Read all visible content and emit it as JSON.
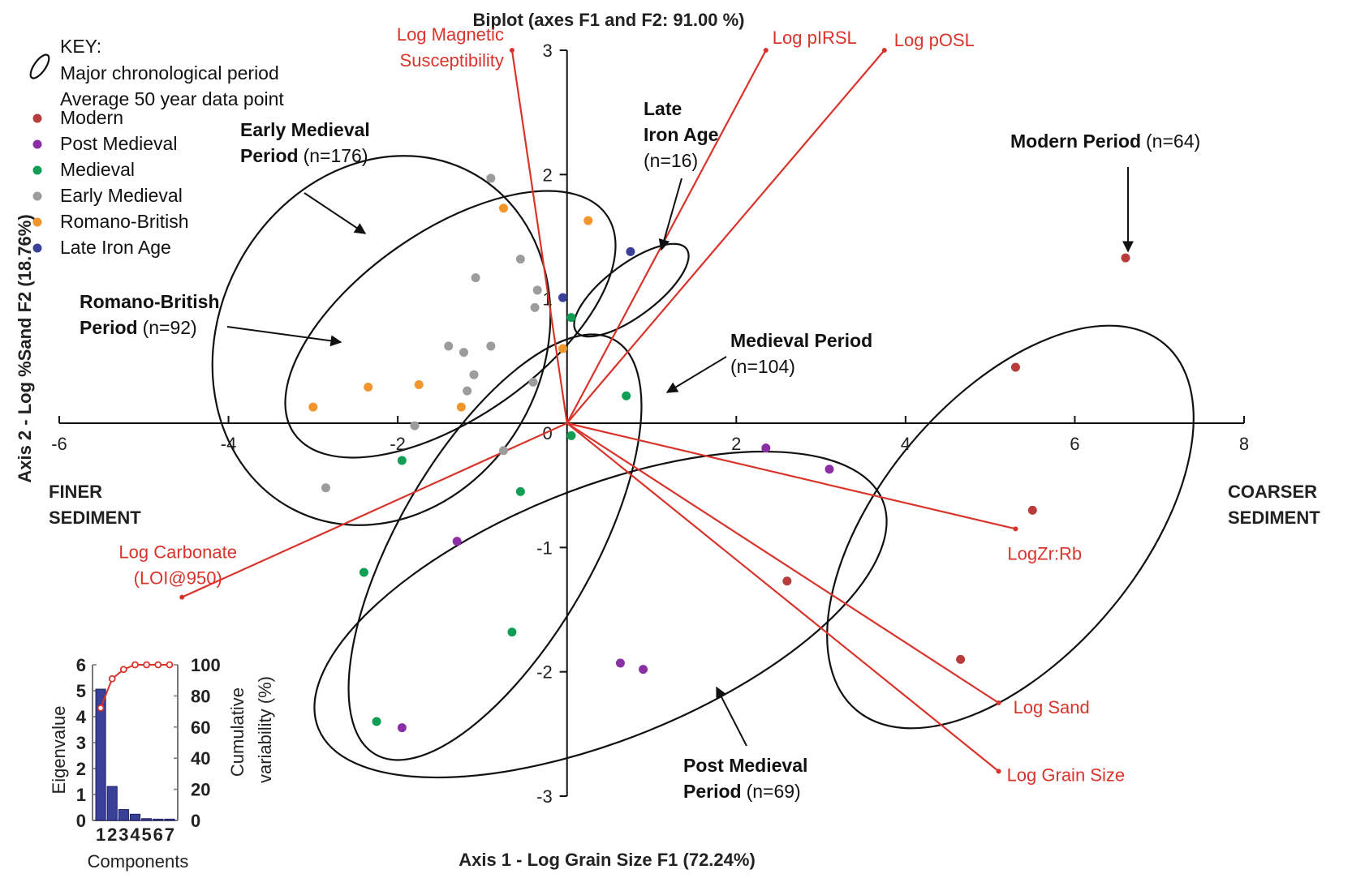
{
  "chart_data": {
    "type": "scatter",
    "title": "Biplot (axes F1 and F2: 91.00 %)",
    "xlabel": "Axis 1 - Log Grain Size F1 (72.24%)",
    "ylabel": "Axis 2 - Log %Sand F2 (18.76%)",
    "xlim": [
      -6,
      8
    ],
    "ylim": [
      -3,
      3
    ],
    "x_ticks": [
      "-6",
      "-4",
      "-2",
      "0",
      "2",
      "4",
      "6",
      "8"
    ],
    "y_ticks": [
      "-3",
      "-2",
      "-1",
      "1",
      "2",
      "3"
    ],
    "origin_label": "0",
    "x_left_label": [
      "FINER",
      "SEDIMENT"
    ],
    "x_right_label": [
      "COARSER",
      "SEDIMENT"
    ],
    "legend": {
      "position": "top-left",
      "heading": "KEY:",
      "ellipse_text": "Major chronological period",
      "point_text": "Average 50 year data point",
      "entries": [
        {
          "name": "Modern",
          "color": "#b83c3c"
        },
        {
          "name": "Post Medieval",
          "color": "#8b2fa6"
        },
        {
          "name": "Medieval",
          "color": "#0f9e54"
        },
        {
          "name": "Early Medieval",
          "color": "#9c9c9c"
        },
        {
          "name": "Romano-British",
          "color": "#f0962c"
        },
        {
          "name": "Late Iron Age",
          "color": "#3a3f97"
        }
      ]
    },
    "series": [
      {
        "name": "Modern",
        "color": "#b83c3c",
        "points": [
          [
            6.6,
            1.33
          ],
          [
            5.3,
            0.45
          ],
          [
            5.5,
            -0.7
          ],
          [
            2.6,
            -1.27
          ],
          [
            4.65,
            -1.9
          ]
        ]
      },
      {
        "name": "Post Medieval",
        "color": "#8b2fa6",
        "points": [
          [
            2.35,
            -0.2
          ],
          [
            3.1,
            -0.37
          ],
          [
            -1.3,
            -0.95
          ],
          [
            0.63,
            -1.93
          ],
          [
            0.9,
            -1.98
          ],
          [
            -1.95,
            -2.45
          ]
        ]
      },
      {
        "name": "Medieval",
        "color": "#0f9e54",
        "points": [
          [
            0.05,
            0.85
          ],
          [
            0.7,
            0.22
          ],
          [
            0.05,
            -0.1
          ],
          [
            -1.95,
            -0.3
          ],
          [
            -0.55,
            -0.55
          ],
          [
            -2.4,
            -1.2
          ],
          [
            -0.65,
            -1.68
          ],
          [
            -2.25,
            -2.4
          ]
        ]
      },
      {
        "name": "Early Medieval",
        "color": "#9c9c9c",
        "points": [
          [
            -0.9,
            1.97
          ],
          [
            -1.08,
            1.17
          ],
          [
            -0.55,
            1.32
          ],
          [
            -0.35,
            1.07
          ],
          [
            -0.38,
            0.93
          ],
          [
            -1.4,
            0.62
          ],
          [
            -1.22,
            0.57
          ],
          [
            -0.9,
            0.62
          ],
          [
            -1.1,
            0.39
          ],
          [
            -1.18,
            0.26
          ],
          [
            -0.4,
            0.33
          ],
          [
            -1.8,
            -0.02
          ],
          [
            -0.75,
            -0.22
          ],
          [
            -2.85,
            -0.52
          ]
        ]
      },
      {
        "name": "Romano-British",
        "color": "#f0962c",
        "points": [
          [
            -0.75,
            1.73
          ],
          [
            0.25,
            1.63
          ],
          [
            -0.05,
            0.6
          ],
          [
            -2.35,
            0.29
          ],
          [
            -1.75,
            0.31
          ],
          [
            -3.0,
            0.13
          ],
          [
            -1.25,
            0.13
          ]
        ]
      },
      {
        "name": "Late Iron Age",
        "color": "#3a3f97",
        "points": [
          [
            0.75,
            1.38
          ],
          [
            -0.05,
            1.01
          ]
        ]
      }
    ],
    "loadings": [
      {
        "name": "Log Magnetic Susceptibility",
        "lines": [
          "Log Magnetic",
          "Susceptibility"
        ],
        "x": -0.65,
        "y": 3.0
      },
      {
        "name": "Log pIRSL",
        "lines": [
          "Log pIRSL"
        ],
        "x": 2.35,
        "y": 3.0
      },
      {
        "name": "Log pOSL",
        "lines": [
          "Log pOSL"
        ],
        "x": 3.75,
        "y": 3.0
      },
      {
        "name": "LogZr:Rb",
        "lines": [
          "LogZr:Rb"
        ],
        "x": 5.3,
        "y": -0.85
      },
      {
        "name": "Log Sand",
        "lines": [
          "Log Sand"
        ],
        "x": 5.1,
        "y": -2.25
      },
      {
        "name": "Log Grain Size",
        "lines": [
          "Log Grain Size"
        ],
        "x": 5.1,
        "y": -2.8
      },
      {
        "name": "Log Carbonate (LOI@950)",
        "lines": [
          "Log Carbonate",
          "(LOI@950)"
        ],
        "x": -4.55,
        "y": -1.4
      }
    ],
    "period_annotations": [
      {
        "name": "Early Medieval Period",
        "lines": [
          "Early Medieval",
          "Period"
        ],
        "n": "(n=176)"
      },
      {
        "name": "Romano-British Period",
        "lines": [
          "Romano-British",
          "Period"
        ],
        "n": "(n=92)"
      },
      {
        "name": "Late Iron Age",
        "lines": [
          "Late",
          "Iron Age"
        ],
        "n": "(n=16)"
      },
      {
        "name": "Modern Period",
        "lines": [
          "Modern Period"
        ],
        "n": "(n=64)"
      },
      {
        "name": "Medieval Period",
        "lines": [
          "Medieval Period"
        ],
        "n": "(n=104)"
      },
      {
        "name": "Post Medieval Period",
        "lines": [
          "Post Medieval",
          "Period"
        ],
        "n": "(n=69)"
      }
    ],
    "inset": {
      "type": "bar",
      "xlabel": "Components",
      "ylabel_left": "Eigenvalue",
      "ylabel_right": [
        "Cumulative",
        "variability (%)"
      ],
      "categories": [
        "1",
        "2",
        "3",
        "4",
        "5",
        "6",
        "7"
      ],
      "eigenvalues": [
        5.06,
        1.31,
        0.42,
        0.24,
        0.07,
        0.05,
        0.05
      ],
      "cumulative": [
        72.24,
        91.0,
        97.0,
        100,
        100,
        100,
        100
      ],
      "ylim_left": [
        0,
        6
      ],
      "ylim_right": [
        0,
        100
      ],
      "left_ticks": [
        "0",
        "1",
        "2",
        "3",
        "4",
        "5",
        "6"
      ],
      "right_ticks": [
        "0",
        "20",
        "40",
        "60",
        "80",
        "100"
      ],
      "bar_color": "#3a3f97",
      "line_color": "#d9342b"
    }
  }
}
